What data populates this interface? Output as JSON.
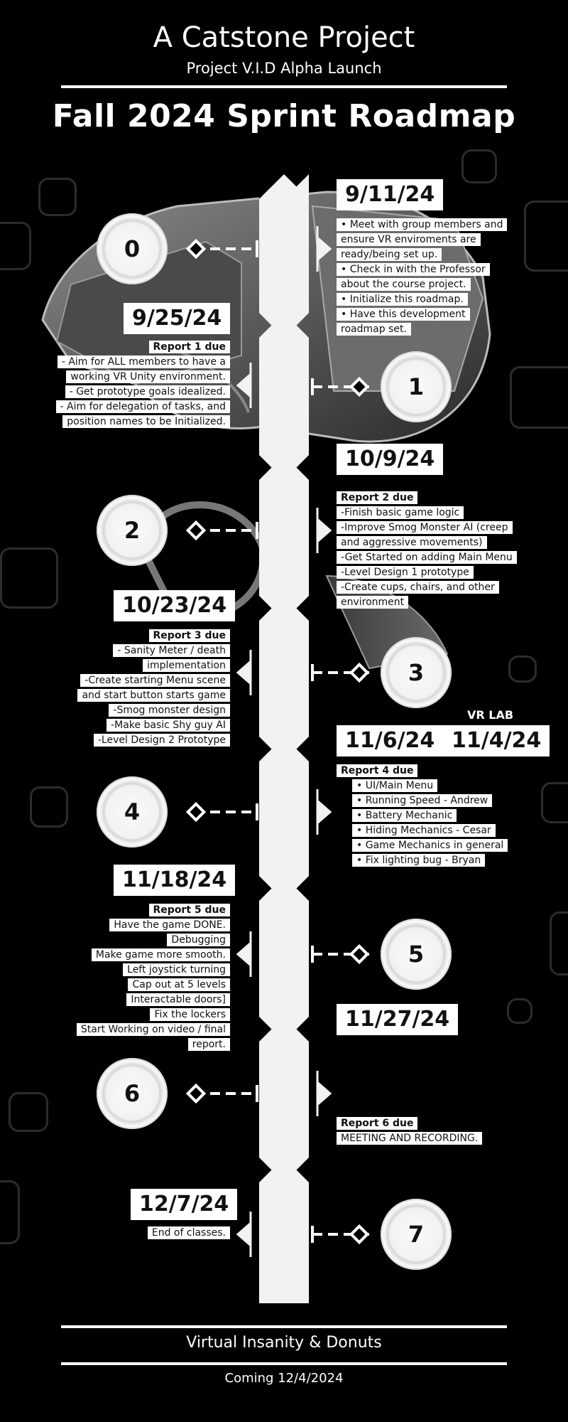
{
  "header": {
    "title": "A Catstone Project",
    "subtitle": "Project V.I.D Alpha Launch",
    "main_title": "Fall 2024 Sprint Roadmap"
  },
  "milestones": [
    {
      "number": "0",
      "date": "9/11/24",
      "items": [
        "Meet with group members and ensure VR enviroments are ready/being set up.",
        "Check in with the Professor about the course project.",
        "Initialize this roadmap.",
        "Have this development roadmap set."
      ]
    },
    {
      "number": "1",
      "date": "9/25/24",
      "report": "Report 1 due",
      "lines": [
        "- Aim for ALL members to have a",
        "working VR Unity environment.",
        "- Get prototype goals idealized.",
        "- Aim for delegation of tasks, and",
        "position names to be Initialized."
      ]
    },
    {
      "number": "2",
      "date": "10/9/24",
      "report": "Report 2 due",
      "lines": [
        "-Finish basic game logic",
        "-Improve Smog Monster AI (creep",
        "and aggressive movements)",
        "-Get Started on adding Main Menu",
        "-Level Design 1 prototype",
        "-Create cups, chairs, and other",
        "environment"
      ]
    },
    {
      "number": "3",
      "date": "10/23/24",
      "report": "Report 3 due",
      "lines": [
        "- Sanity Meter / death",
        "implementation",
        "-Create starting Menu scene",
        "and start button starts game",
        "-Smog monster design",
        "-Make basic Shy guy AI",
        "-Level Design 2 Prototype"
      ]
    },
    {
      "number": "4",
      "date": "11/6/24",
      "extra_label": "VR LAB",
      "extra_date": "11/4/24",
      "report": "Report 4 due",
      "items": [
        "UI/Main Menu",
        "Running Speed - Andrew",
        "Battery Mechanic",
        "Hiding Mechanics - Cesar",
        "Game Mechanics in general",
        "Fix lighting bug - Bryan"
      ]
    },
    {
      "number": "5",
      "date": "11/18/24",
      "report": "Report 5 due",
      "lines": [
        "Have the game DONE.",
        "Debugging",
        "Make game more smooth.",
        "Left joystick turning",
        "Cap out at 5 levels",
        "Interactable doors]",
        "Fix the lockers",
        "Start Working on video / final",
        "report."
      ]
    },
    {
      "number": "6",
      "date": "11/27/24",
      "report": "Report 6 due",
      "lines": [
        "MEETING AND RECORDING."
      ]
    },
    {
      "number": "7",
      "date": "12/7/24",
      "lines": [
        "End of classes."
      ]
    }
  ],
  "footer": {
    "title": "Virtual Insanity & Donuts",
    "date": "Coming 12/4/2024"
  },
  "colors": {
    "background": "#000000",
    "foreground": "#ffffff",
    "spine": "#f2f2f2",
    "decor": "#2c2c2c"
  },
  "icons": [
    "vr-headset-illustration",
    "diamond-connector-icon",
    "arrow-pointer-icon"
  ]
}
